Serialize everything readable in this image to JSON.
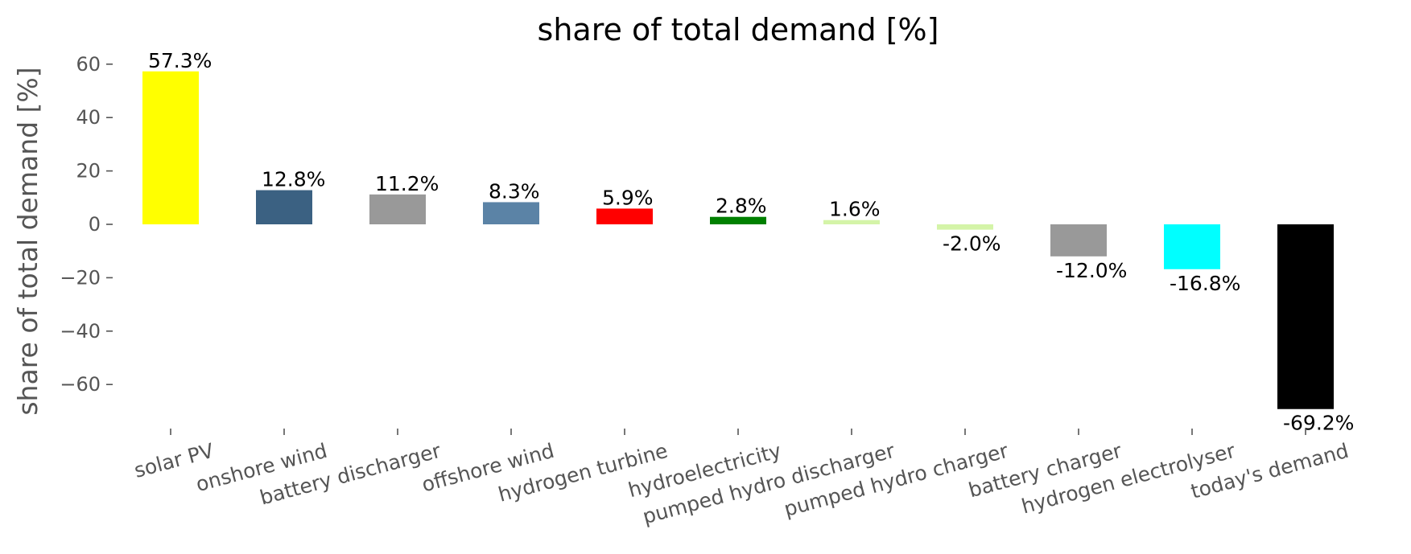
{
  "chart_data": {
    "type": "bar",
    "title": "share of total demand [%]",
    "ylabel": "share of total demand [%]",
    "xlabel": "",
    "ylim": [
      -77,
      63
    ],
    "yticks": [
      60,
      40,
      20,
      0,
      -20,
      -40,
      -60
    ],
    "ytick_labels": [
      "60",
      "40",
      "20",
      "0",
      "−20",
      "−40",
      "−60"
    ],
    "grid": false,
    "legend": "none",
    "categories": [
      "solar PV",
      "onshore wind",
      "battery discharger",
      "offshore wind",
      "hydrogen turbine",
      "hydroelectricity",
      "pumped hydro discharger",
      "pumped hydro charger",
      "battery charger",
      "hydrogen electrolyser",
      "today's demand"
    ],
    "values": [
      57.3,
      12.8,
      11.2,
      8.3,
      5.9,
      2.8,
      1.6,
      -2.0,
      -12.0,
      -16.8,
      -69.2
    ],
    "data_labels": [
      "57.3%",
      "12.8%",
      "11.2%",
      "8.3%",
      "5.9%",
      "2.8%",
      "1.6%",
      "-2.0%",
      "-12.0%",
      "-16.8%",
      "-69.2%"
    ],
    "colors": [
      "#ffff00",
      "#3b6182",
      "#999999",
      "#5b83a6",
      "#ff0000",
      "#008000",
      "#d4f4a8",
      "#d4f4a8",
      "#999999",
      "#00ffff",
      "#000000"
    ]
  }
}
